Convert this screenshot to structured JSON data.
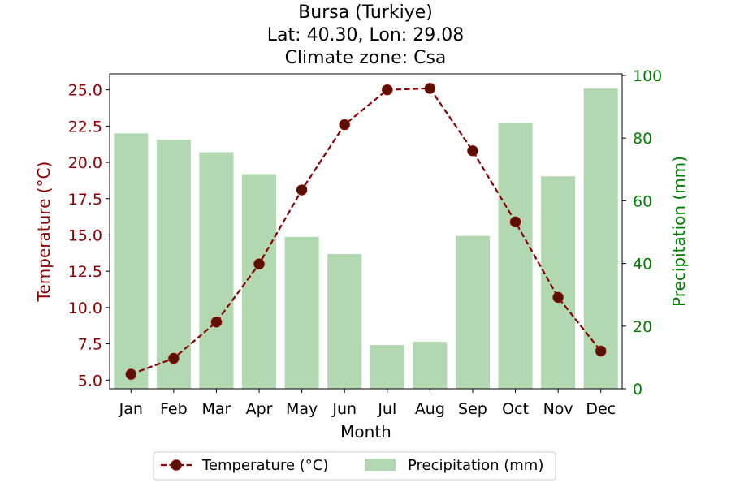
{
  "chart_data": {
    "type": "bar+line",
    "title_lines": [
      "Bursa (Turkiye)",
      "Lat: 40.30, Lon: 29.08",
      "Climate zone: Csa"
    ],
    "xlabel": "Month",
    "ylabel_left": "Temperature (°C)",
    "ylabel_right": "Precipitation (mm)",
    "categories": [
      "Jan",
      "Feb",
      "Mar",
      "Apr",
      "May",
      "Jun",
      "Jul",
      "Aug",
      "Sep",
      "Oct",
      "Nov",
      "Dec"
    ],
    "temperature": {
      "name": "Temperature (°C)",
      "values": [
        5.4,
        6.5,
        9.0,
        13.0,
        18.1,
        22.6,
        25.0,
        25.1,
        20.8,
        15.9,
        10.7,
        7.0
      ],
      "color": "#8b0000"
    },
    "precipitation": {
      "name": "Precipitation (mm)",
      "values": [
        81.5,
        79.5,
        75.5,
        68.5,
        48.5,
        43.0,
        14.0,
        15.0,
        48.8,
        84.8,
        67.8,
        95.8
      ],
      "color": "#b2d8b2"
    },
    "ylim_left": [
      4.4,
      26.1
    ],
    "yticks_left": [
      "5.0",
      "7.5",
      "10.0",
      "12.5",
      "15.0",
      "17.5",
      "20.0",
      "22.5",
      "25.0"
    ],
    "ylim_right": [
      0,
      100.5
    ],
    "yticks_right": [
      "0",
      "20",
      "40",
      "60",
      "80",
      "100"
    ],
    "left_axis_color": "#8b0000",
    "right_axis_color": "#008000",
    "legend_position": "bottom-center",
    "grid": false
  }
}
